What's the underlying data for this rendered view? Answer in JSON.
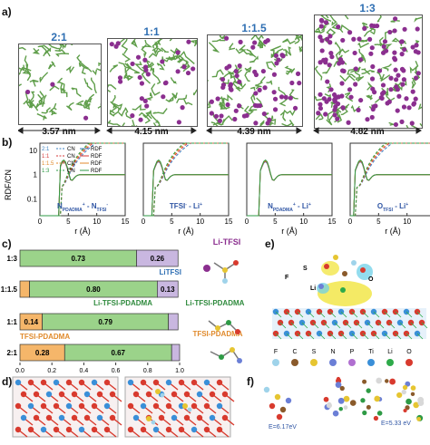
{
  "panel_labels": {
    "a": "a)",
    "b": "b)",
    "c": "c)",
    "d": "d)",
    "e": "e)",
    "f": "f)"
  },
  "panel_a": {
    "boxes": [
      {
        "ratio": "2:1",
        "size": "3.57 nm",
        "li_count": 3
      },
      {
        "ratio": "1:1",
        "size": "4.15 nm",
        "li_count": 30
      },
      {
        "ratio": "1:1.5",
        "size": "4.39 nm",
        "li_count": 60
      },
      {
        "ratio": "1:3",
        "size": "4.82 nm",
        "li_count": 130
      }
    ],
    "colors": {
      "polymer": "#5f9e4a",
      "li": "#8b2f8f"
    }
  },
  "panel_b": {
    "ylabel": "RDF/CN",
    "xlabel": "r (Å)",
    "legend": [
      {
        "ratio": "2:1",
        "color": "#3a7fc1"
      },
      {
        "ratio": "1:1",
        "color": "#d63a3a"
      },
      {
        "ratio": "1:1.5",
        "color": "#e08a2c"
      },
      {
        "ratio": "1:3",
        "color": "#2e9a45"
      }
    ],
    "legend_cn": "CN",
    "legend_rdf": "RDF",
    "plots": [
      {
        "label": "N",
        "sub1": "PDADMA",
        "sup1": "+",
        "mid": " - N",
        "sub2": "TFSI",
        "sup2": "-"
      },
      {
        "label": "TFSI",
        "sub1": "",
        "sup1": "-",
        "mid": " - Li",
        "sub2": "",
        "sup2": "+"
      },
      {
        "label": "N",
        "sub1": "PDADMA",
        "sup1": "+",
        "mid": " - Li",
        "sub2": "",
        "sup2": "+"
      },
      {
        "label": "O",
        "sub1": "TFSI",
        "sup1": "",
        "mid": " - Li",
        "sub2": "",
        "sup2": "+"
      }
    ],
    "yticks": [
      "10",
      "1",
      "0.1"
    ],
    "xticks": [
      "0",
      "5",
      "10",
      "15"
    ]
  },
  "chart_data": {
    "type": "bar",
    "categories": [
      "1:3",
      "1:1.5",
      "1:1",
      "2:1"
    ],
    "series": [
      {
        "name": "TFSI-PDADMA",
        "color": "#f5b66a",
        "values": [
          0,
          0.06,
          0.14,
          0.28
        ],
        "labels": [
          "",
          "",
          "0.14",
          "0.28"
        ]
      },
      {
        "name": "Li-TFSI-PDADMA",
        "color": "#9bd38a",
        "values": [
          0.73,
          0.8,
          0.79,
          0.67
        ],
        "labels": [
          "0.73",
          "0.80",
          "0.79",
          "0.67"
        ]
      },
      {
        "name": "LiTFSI",
        "color": "#c9b7e0",
        "values": [
          0.26,
          0.13,
          0.06,
          0.05
        ],
        "labels": [
          "0.26",
          "0.13",
          "",
          ""
        ]
      }
    ],
    "xlim": [
      0,
      1
    ],
    "xticks": [
      "0.0",
      "0.2",
      "0.4",
      "0.6",
      "0.8",
      "1.0"
    ]
  },
  "panel_c_labels": [
    {
      "text": "LiTFSI",
      "color": "#2f6fb3"
    },
    {
      "text": "Li-TFSI-PDADMA",
      "color": "#2e8a3c"
    },
    {
      "text": "TFSI-PDADMA",
      "color": "#e08a2c"
    }
  ],
  "panel_c_side": [
    {
      "text": "Li-TFSI",
      "color": "#8b2f8f"
    },
    {
      "text": "Li-TFSI-PDADMA",
      "color": "#2e8a3c"
    },
    {
      "text": "TFSI-PDADMA",
      "color": "#e08a2c"
    }
  ],
  "panel_e": {
    "legend": [
      {
        "sym": "F",
        "color": "#9fd3ea"
      },
      {
        "sym": "C",
        "color": "#8a5a2b"
      },
      {
        "sym": "S",
        "color": "#e6c531"
      },
      {
        "sym": "N",
        "color": "#6b7fd6"
      },
      {
        "sym": "P",
        "color": "#b06fd0"
      },
      {
        "sym": "Ti",
        "color": "#3a8fd8"
      },
      {
        "sym": "Li",
        "color": "#2eaa4a"
      },
      {
        "sym": "O",
        "color": "#d83a2e"
      }
    ],
    "annotations": [
      "F",
      "S",
      "Li",
      "O"
    ]
  },
  "panel_f": {
    "energies": [
      "E=6.17eV",
      "E=5.33 eV"
    ]
  }
}
